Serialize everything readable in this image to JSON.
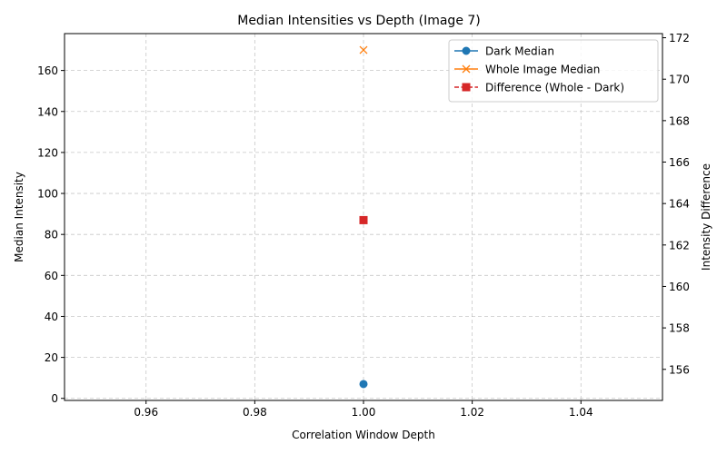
{
  "chart_data": {
    "type": "scatter",
    "title": "Median Intensities vs Depth (Image 7)",
    "xlabel": "Correlation Window Depth",
    "ylabel": "Median Intensity",
    "y2label": "Intensity Difference",
    "xlim": [
      0.945,
      1.055
    ],
    "ylim": [
      -1,
      178
    ],
    "y2lim": [
      154.5,
      172.2
    ],
    "xticks": [
      "0.96",
      "0.98",
      "1.00",
      "1.02",
      "1.04"
    ],
    "yticks": [
      "0",
      "20",
      "40",
      "60",
      "80",
      "100",
      "120",
      "140",
      "160"
    ],
    "y2ticks": [
      "156",
      "158",
      "160",
      "162",
      "164",
      "166",
      "168",
      "170",
      "172"
    ],
    "grid": true,
    "legend_position": "top-right",
    "series": [
      {
        "name": "Dark Median",
        "axis": "left",
        "marker": "circle",
        "line": "solid",
        "color": "#1f77b4",
        "x": [
          1.0
        ],
        "y": [
          7
        ]
      },
      {
        "name": "Whole Image Median",
        "axis": "left",
        "marker": "x",
        "line": "solid",
        "color": "#ff7f0e",
        "x": [
          1.0
        ],
        "y": [
          170
        ]
      },
      {
        "name": "Difference (Whole - Dark)",
        "axis": "right",
        "marker": "square",
        "line": "dashed",
        "color": "#d62728",
        "x": [
          1.0
        ],
        "y": [
          163.2
        ]
      }
    ]
  }
}
